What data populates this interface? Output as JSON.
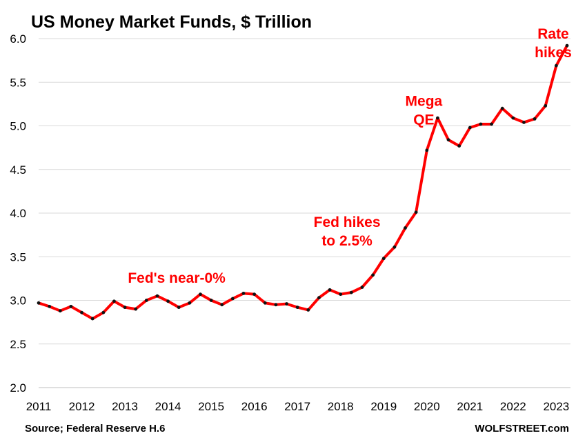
{
  "chart_data": {
    "type": "line",
    "title": "US Money Market Funds, $ Trillion",
    "xlabel": "",
    "ylabel": "",
    "xlim": [
      2011,
      2023.33
    ],
    "ylim": [
      2.0,
      6.0
    ],
    "y_ticks": [
      "2.0",
      "2.5",
      "3.0",
      "3.5",
      "4.0",
      "4.5",
      "5.0",
      "5.5",
      "6.0"
    ],
    "x_ticks": [
      "2011",
      "2012",
      "2013",
      "2014",
      "2015",
      "2016",
      "2017",
      "2018",
      "2019",
      "2020",
      "2021",
      "2022",
      "2023"
    ],
    "grid": true,
    "legend": "none",
    "series": [
      {
        "x": [
          2011.0,
          2011.25,
          2011.5,
          2011.75,
          2012.0,
          2012.25,
          2012.5,
          2012.75,
          2013.0,
          2013.25,
          2013.5,
          2013.75,
          2014.0,
          2014.25,
          2014.5,
          2014.75,
          2015.0,
          2015.25,
          2015.5,
          2015.75,
          2016.0,
          2016.25,
          2016.5,
          2016.75,
          2017.0,
          2017.25,
          2017.5,
          2017.75,
          2018.0,
          2018.25,
          2018.5,
          2018.75,
          2019.0,
          2019.25,
          2019.5,
          2019.75,
          2020.0,
          2020.25,
          2020.5,
          2020.75,
          2021.0,
          2021.25,
          2021.5,
          2021.75,
          2022.0,
          2022.25,
          2022.5,
          2022.75,
          2023.0,
          2023.25
        ],
        "y": [
          2.97,
          2.93,
          2.88,
          2.93,
          2.86,
          2.79,
          2.86,
          2.99,
          2.92,
          2.9,
          3.0,
          3.05,
          2.99,
          2.92,
          2.97,
          3.07,
          3.0,
          2.95,
          3.02,
          3.08,
          3.07,
          2.97,
          2.95,
          2.96,
          2.92,
          2.89,
          3.03,
          3.12,
          3.07,
          3.09,
          3.15,
          3.29,
          3.48,
          3.61,
          3.83,
          4.01,
          4.72,
          5.09,
          4.84,
          4.77,
          4.98,
          5.02,
          5.02,
          5.2,
          5.09,
          5.04,
          5.08,
          5.23,
          5.69,
          5.92
        ],
        "color": "#ff0000",
        "marker_color": "#111111"
      }
    ],
    "annotations": [
      {
        "lines": [
          "Fed's near-0%"
        ],
        "x": 2014.2,
        "y": 3.2
      },
      {
        "lines": [
          "Fed hikes",
          "to 2.5%"
        ],
        "x": 2018.15,
        "y": 3.84
      },
      {
        "lines": [
          "Mega",
          "QE"
        ],
        "x": 2019.93,
        "y": 5.23
      },
      {
        "lines": [
          "Rate",
          "hikes"
        ],
        "x": 2022.93,
        "y": 6.0
      }
    ]
  },
  "footer": {
    "source": "Source; Federal Reserve H.6",
    "brand": "WOLFSTREET.com"
  }
}
